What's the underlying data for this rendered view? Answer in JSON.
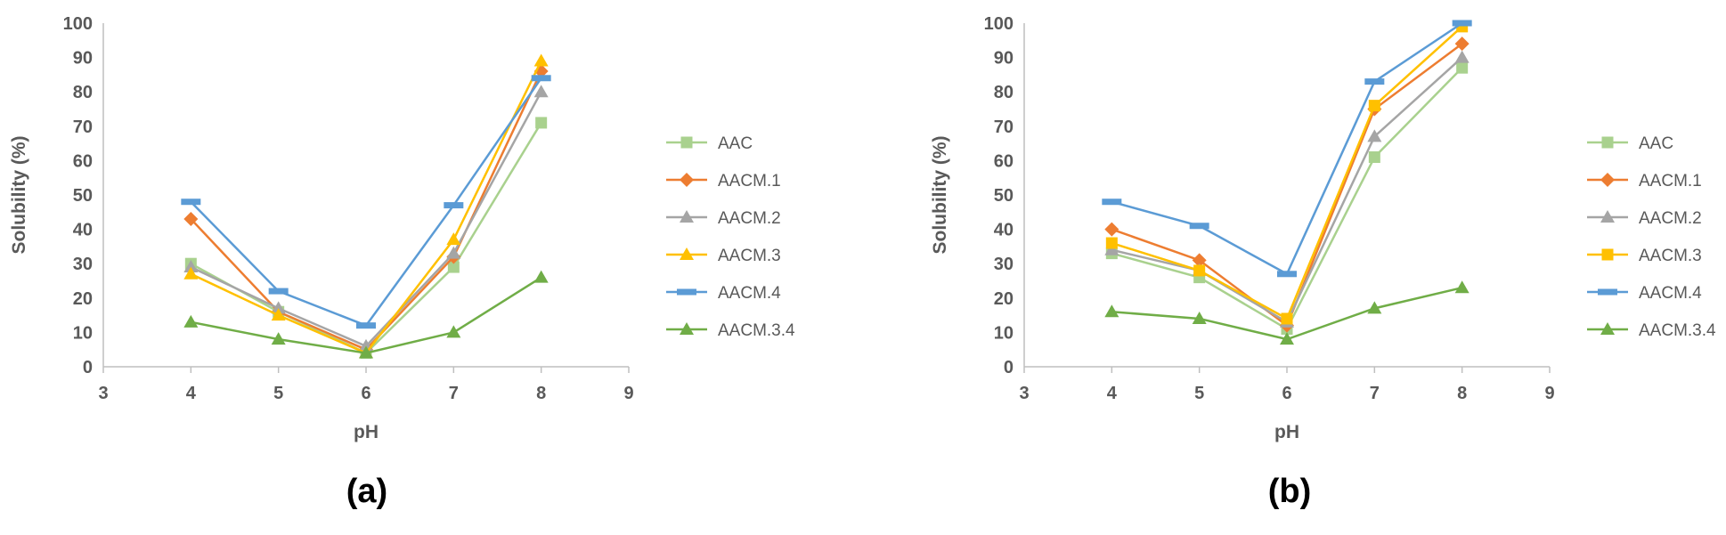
{
  "chart_data": [
    {
      "type": "line",
      "panel_label": "(a)",
      "xlabel": "pH",
      "ylabel": "Solubility (%)",
      "xlim": [
        3,
        9
      ],
      "ylim": [
        0,
        100
      ],
      "x_ticks": [
        "3",
        "4",
        "5",
        "6",
        "7",
        "8",
        "9"
      ],
      "y_ticks": [
        "0",
        "10",
        "20",
        "30",
        "40",
        "50",
        "60",
        "70",
        "80",
        "90",
        "100"
      ],
      "grid": false,
      "legend_position": "right",
      "x": [
        4,
        5,
        6,
        7,
        8
      ],
      "series": [
        {
          "name": "AAC",
          "color": "#A9D18E",
          "marker": "square",
          "values": [
            30,
            16,
            4,
            29,
            71
          ]
        },
        {
          "name": "AACM.1",
          "color": "#ED7D31",
          "marker": "diamond",
          "values": [
            43,
            16,
            5,
            32,
            86
          ]
        },
        {
          "name": "AACM.2",
          "color": "#A5A5A5",
          "marker": "triangle",
          "values": [
            29,
            17,
            6,
            33,
            80
          ]
        },
        {
          "name": "AACM.3",
          "color": "#FFC000",
          "marker": "triangle",
          "values": [
            27,
            15,
            4,
            37,
            89
          ]
        },
        {
          "name": "AACM.4",
          "color": "#5B9BD5",
          "marker": "dash",
          "values": [
            48,
            22,
            12,
            47,
            84
          ]
        },
        {
          "name": "AACM.3.4",
          "color": "#70AD47",
          "marker": "triangle",
          "values": [
            13,
            8,
            4,
            10,
            26
          ]
        }
      ]
    },
    {
      "type": "line",
      "panel_label": "(b)",
      "xlabel": "pH",
      "ylabel": "Solubility (%)",
      "xlim": [
        3,
        9
      ],
      "ylim": [
        0,
        100
      ],
      "x_ticks": [
        "3",
        "4",
        "5",
        "6",
        "7",
        "8",
        "9"
      ],
      "y_ticks": [
        "0",
        "10",
        "20",
        "30",
        "40",
        "50",
        "60",
        "70",
        "80",
        "90",
        "100"
      ],
      "grid": false,
      "legend_position": "right",
      "x": [
        4,
        5,
        6,
        7,
        8
      ],
      "series": [
        {
          "name": "AAC",
          "color": "#A9D18E",
          "marker": "square",
          "values": [
            33,
            26,
            11,
            61,
            87
          ]
        },
        {
          "name": "AACM.1",
          "color": "#ED7D31",
          "marker": "diamond",
          "values": [
            40,
            31,
            12,
            75,
            94
          ]
        },
        {
          "name": "AACM.2",
          "color": "#A5A5A5",
          "marker": "triangle",
          "values": [
            34,
            28,
            13,
            67,
            90
          ]
        },
        {
          "name": "AACM.3",
          "color": "#FFC000",
          "marker": "square",
          "values": [
            36,
            28,
            14,
            76,
            99
          ]
        },
        {
          "name": "AACM.4",
          "color": "#5B9BD5",
          "marker": "dash",
          "values": [
            48,
            41,
            27,
            83,
            100
          ]
        },
        {
          "name": "AACM.3.4",
          "color": "#70AD47",
          "marker": "triangle",
          "values": [
            16,
            14,
            8,
            17,
            23
          ]
        }
      ]
    }
  ]
}
